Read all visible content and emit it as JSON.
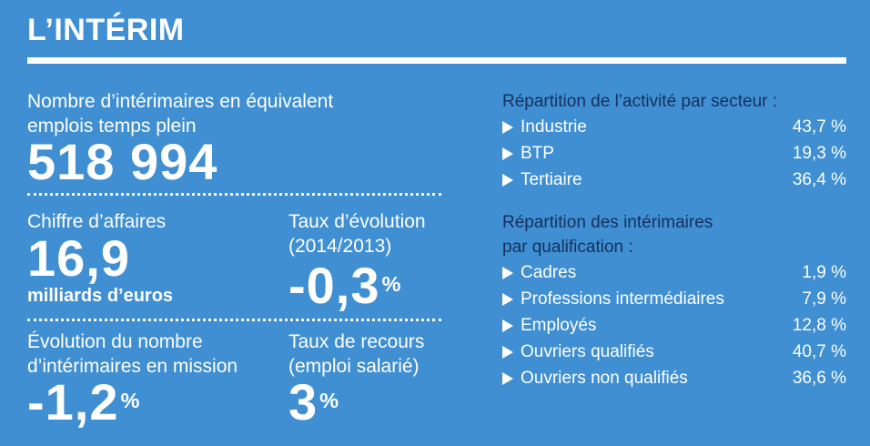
{
  "title": "L’INTÉRIM",
  "left": {
    "headcount_label_1": "Nombre d’intérimaires en équivalent",
    "headcount_label_2": "emplois temps plein",
    "headcount_value": "518 994",
    "revenue_label": "Chiffre d’affaires",
    "revenue_value": "16,9",
    "revenue_unit": "milliards d’euros",
    "growth_label_1": "Taux d’évolution",
    "growth_label_2": "(2014/2013)",
    "growth_value": "-0,3",
    "growth_suffix": "%",
    "evolution_label_1": "Évolution du nombre",
    "evolution_label_2": "d’intérimaires en mission",
    "evolution_value": "-1,2",
    "evolution_suffix": "%",
    "recourse_label_1": "Taux de recours",
    "recourse_label_2": "(emploi salarié)",
    "recourse_value": "3",
    "recourse_suffix": "%"
  },
  "sectors": {
    "heading": "Répartition de l’activité par secteur :",
    "items": [
      {
        "label": "Industrie",
        "value": "43,7 %"
      },
      {
        "label": "BTP",
        "value": "19,3 %"
      },
      {
        "label": "Tertiaire",
        "value": "36,4 %"
      }
    ]
  },
  "qualifications": {
    "heading_1": "Répartition des intérimaires",
    "heading_2": "par qualification :",
    "items": [
      {
        "label": "Cadres",
        "value": "1,9 %"
      },
      {
        "label": "Professions intermédiaires",
        "value": "7,9 %"
      },
      {
        "label": "Employés",
        "value": "12,8 %"
      },
      {
        "label": "Ouvriers qualifiés",
        "value": "40,7 %"
      },
      {
        "label": "Ouvriers non qualifiés",
        "value": "36,6 %"
      }
    ]
  },
  "colors": {
    "background": "#3f8fd2",
    "heading_text": "#16315e",
    "text": "#ffffff"
  }
}
